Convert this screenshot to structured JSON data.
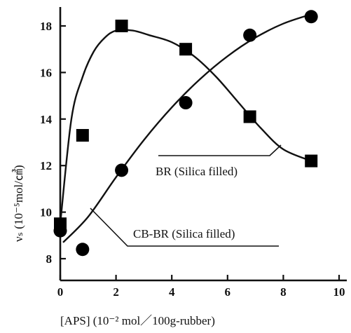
{
  "chart_data": {
    "type": "scatter",
    "title": "",
    "xlabel": "[APS] (10⁻² mol／100g-rubber)",
    "ylabel": "νₛ (10⁻⁵mol/㎤)",
    "xlim": [
      0,
      10
    ],
    "ylim": [
      7,
      18.7
    ],
    "x_ticks": [
      "0",
      "2",
      "4",
      "6",
      "8",
      "10"
    ],
    "y_ticks": [
      "8",
      "10",
      "12",
      "14",
      "16",
      "18"
    ],
    "grid": false,
    "series": [
      {
        "name": "BR (Silica filled)",
        "marker": "square",
        "x": [
          0,
          0.8,
          2.2,
          4.5,
          6.8,
          9.0
        ],
        "y": [
          9.5,
          13.3,
          18.0,
          17.0,
          14.1,
          12.2
        ]
      },
      {
        "name": "CB-BR (Silica filled)",
        "marker": "circle",
        "x": [
          0,
          0.8,
          2.2,
          4.5,
          6.8,
          9.0
        ],
        "y": [
          9.2,
          8.4,
          11.8,
          14.7,
          17.6,
          18.4
        ]
      }
    ],
    "fit_curves": [
      {
        "series": "BR (Silica filled)",
        "x": [
          0,
          0.4,
          0.8,
          1.2,
          1.6,
          2.0,
          2.6,
          3.2,
          4.0,
          4.8,
          5.6,
          6.4,
          7.2,
          8.0,
          9.0
        ],
        "y": [
          9.5,
          14.0,
          15.8,
          16.9,
          17.5,
          17.8,
          17.8,
          17.6,
          17.3,
          16.7,
          15.8,
          14.7,
          13.6,
          12.7,
          12.2
        ]
      },
      {
        "series": "CB-BR (Silica filled)",
        "x": [
          0.1,
          1.0,
          2.0,
          3.0,
          4.0,
          5.0,
          6.0,
          7.0,
          8.0,
          9.0
        ],
        "y": [
          8.7,
          9.8,
          11.5,
          13.1,
          14.5,
          15.7,
          16.7,
          17.5,
          18.1,
          18.5
        ]
      }
    ],
    "annotations": [
      {
        "text": "BR (Silica filled)",
        "points_to": "BR (Silica filled)"
      },
      {
        "text": "CB-BR (Silica filled)",
        "points_to": "CB-BR (Silica filled)"
      }
    ]
  }
}
